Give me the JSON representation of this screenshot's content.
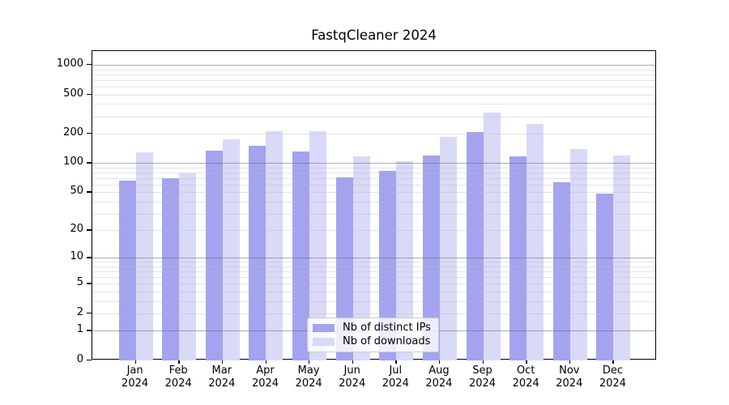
{
  "chart_data": {
    "type": "bar",
    "title": "FastqCleaner 2024",
    "categories": [
      "Jan",
      "Feb",
      "Mar",
      "Apr",
      "May",
      "Jun",
      "Jul",
      "Aug",
      "Sep",
      "Oct",
      "Nov",
      "Dec"
    ],
    "x_year_label": "2024",
    "series": [
      {
        "name": "Nb of distinct IPs",
        "color": "#a3a3f0",
        "values": [
          66,
          70,
          135,
          149,
          132,
          71,
          83,
          119,
          208,
          118,
          64,
          48
        ]
      },
      {
        "name": "Nb of downloads",
        "color": "#d9d9f8",
        "values": [
          129,
          79,
          175,
          212,
          212,
          117,
          104,
          184,
          330,
          249,
          138,
          119
        ]
      }
    ],
    "y_ticks": [
      0,
      1,
      2,
      5,
      10,
      20,
      50,
      100,
      200,
      500,
      1000
    ],
    "ylabel": "",
    "xlabel": "",
    "scale": "log10(value+1)",
    "ylim": [
      0,
      1380
    ],
    "grid": true,
    "legend_position": "lower center",
    "background_color": "#ffffff"
  }
}
